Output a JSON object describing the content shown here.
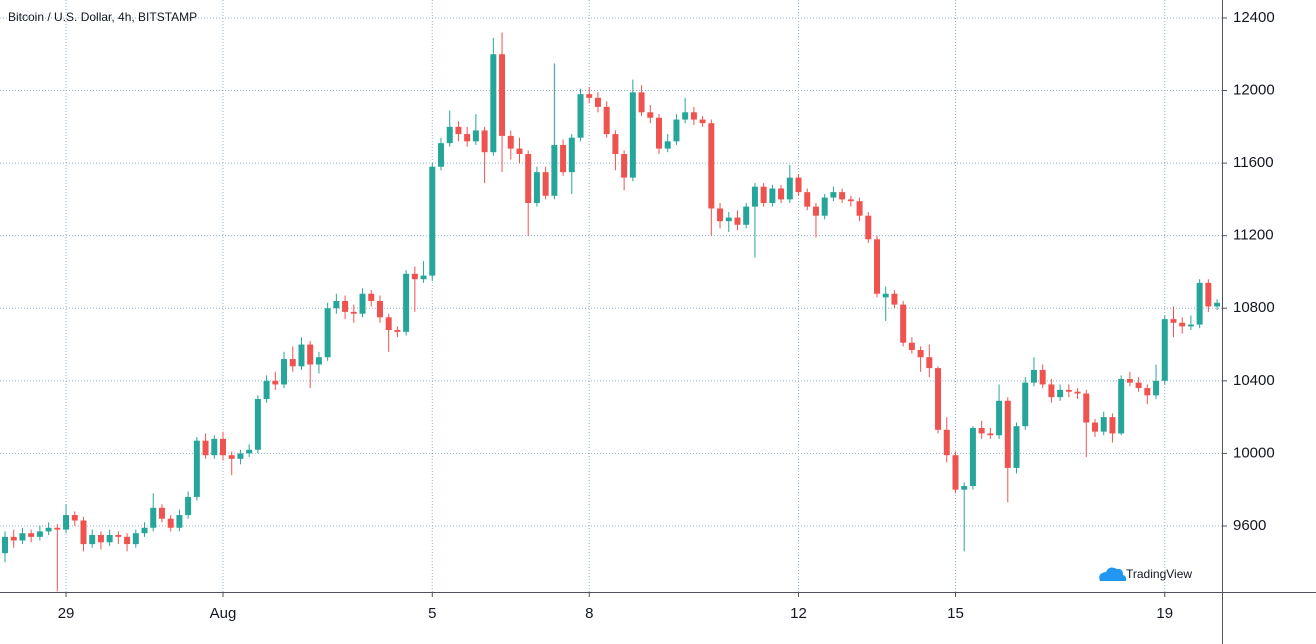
{
  "chart_data": {
    "type": "candlestick",
    "title": "Bitcoin / U.S. Dollar, 4h, BITSTAMP",
    "watermark": "TradingView",
    "categories": [
      null,
      null,
      null,
      null,
      null,
      null,
      null,
      "29",
      null,
      null,
      null,
      null,
      null,
      null,
      null,
      null,
      null,
      null,
      null,
      null,
      null,
      null,
      null,
      null,
      null,
      "Aug",
      null,
      null,
      null,
      null,
      null,
      null,
      null,
      null,
      null,
      null,
      null,
      null,
      null,
      null,
      null,
      null,
      null,
      null,
      null,
      null,
      null,
      null,
      null,
      "5",
      null,
      null,
      null,
      null,
      null,
      null,
      null,
      null,
      null,
      null,
      null,
      null,
      null,
      null,
      null,
      null,
      null,
      "8",
      null,
      null,
      null,
      null,
      null,
      null,
      null,
      null,
      null,
      null,
      null,
      null,
      null,
      null,
      null,
      null,
      null,
      null,
      null,
      null,
      null,
      null,
      null,
      "12",
      null,
      null,
      null,
      null,
      null,
      null,
      null,
      null,
      null,
      null,
      null,
      null,
      null,
      null,
      null,
      null,
      null,
      "15",
      null,
      null,
      null,
      null,
      null,
      null,
      null,
      null,
      null,
      null,
      null,
      null,
      null,
      null,
      null,
      null,
      null,
      null,
      null,
      null,
      null,
      null,
      null,
      "19",
      null,
      null,
      null,
      null,
      null,
      null
    ],
    "open": [
      9450,
      9540,
      9520,
      9560,
      9540,
      9570,
      9590,
      9580,
      9660,
      9630,
      9500,
      9550,
      9510,
      9550,
      9540,
      9500,
      9560,
      9590,
      9700,
      9640,
      9590,
      9660,
      9760,
      10070,
      9990,
      10080,
      9990,
      9970,
      10000,
      10020,
      10300,
      10400,
      10380,
      10520,
      10480,
      10600,
      10490,
      10530,
      10800,
      10840,
      10780,
      10770,
      10880,
      10840,
      10750,
      10680,
      10670,
      10990,
      10960,
      10980,
      11580,
      11710,
      11800,
      11760,
      11720,
      11780,
      11660,
      12200,
      11750,
      11680,
      11650,
      11380,
      11550,
      11420,
      11700,
      11550,
      11740,
      11980,
      11960,
      11910,
      11760,
      11650,
      11520,
      11990,
      11880,
      11850,
      11680,
      11720,
      11840,
      11880,
      11840,
      11820,
      11350,
      11280,
      11300,
      11260,
      11360,
      11470,
      11380,
      11460,
      11400,
      11520,
      11440,
      11360,
      11310,
      11410,
      11440,
      11400,
      11390,
      11310,
      11180,
      10860,
      10880,
      10820,
      10610,
      10570,
      10530,
      10470,
      10130,
      9990,
      9800,
      9820,
      10140,
      10110,
      10100,
      10290,
      9920,
      10150,
      10390,
      10460,
      10380,
      10310,
      10350,
      10340,
      10330,
      10170,
      10120,
      10200,
      10110,
      10410,
      10390,
      10360,
      10320,
      10400,
      10740,
      10720,
      10700,
      10710,
      10940,
      10810
    ],
    "high": [
      9570,
      9580,
      9590,
      9580,
      9600,
      9620,
      9610,
      9720,
      9680,
      9650,
      9580,
      9570,
      9580,
      9570,
      9560,
      9580,
      9620,
      9780,
      9720,
      9660,
      9690,
      9790,
      10090,
      10110,
      10100,
      10120,
      10010,
      10020,
      10050,
      10320,
      10430,
      10450,
      10560,
      10590,
      10640,
      10620,
      10560,
      10830,
      10880,
      10870,
      10820,
      10910,
      10900,
      10870,
      10770,
      10700,
      11010,
      11030,
      11060,
      11600,
      11740,
      11890,
      11830,
      11800,
      11870,
      11800,
      12290,
      12320,
      11780,
      11740,
      11670,
      11580,
      11580,
      12150,
      11730,
      11760,
      12010,
      12020,
      11990,
      11940,
      11780,
      11670,
      12060,
      12030,
      11920,
      11870,
      11760,
      11870,
      11960,
      11910,
      11860,
      11840,
      11380,
      11330,
      11340,
      11380,
      11490,
      11490,
      11480,
      11480,
      11590,
      11540,
      11460,
      11380,
      11430,
      11470,
      11460,
      11420,
      11410,
      11330,
      11200,
      10920,
      10900,
      10840,
      10640,
      10590,
      10600,
      10480,
      10200,
      10010,
      9840,
      10150,
      10180,
      10140,
      10380,
      10310,
      10170,
      10420,
      10530,
      10490,
      10410,
      10380,
      10380,
      10360,
      10350,
      10190,
      10230,
      10220,
      10430,
      10450,
      10420,
      10380,
      10490,
      10760,
      10810,
      10750,
      10760,
      10960,
      10960,
      10850
    ],
    "low": [
      9400,
      9480,
      9500,
      9510,
      9520,
      9550,
      9240,
      9560,
      9600,
      9460,
      9480,
      9470,
      9490,
      9500,
      9460,
      9480,
      9540,
      9570,
      9620,
      9570,
      9570,
      9640,
      9740,
      9970,
      9970,
      9960,
      9880,
      9940,
      9980,
      10000,
      10280,
      10350,
      10360,
      10450,
      10460,
      10360,
      10440,
      10510,
      10770,
      10740,
      10720,
      10750,
      10810,
      10720,
      10560,
      10640,
      10650,
      10780,
      10940,
      10950,
      11560,
      11690,
      11720,
      11690,
      11700,
      11490,
      11640,
      11550,
      11620,
      11600,
      11200,
      11360,
      11400,
      11400,
      11530,
      11430,
      11720,
      11930,
      11880,
      11740,
      11560,
      11450,
      11500,
      11860,
      11820,
      11650,
      11660,
      11700,
      11820,
      11810,
      11800,
      11200,
      11240,
      11220,
      11230,
      11240,
      11080,
      11360,
      11360,
      11380,
      11380,
      11420,
      11340,
      11190,
      11290,
      11390,
      11380,
      11360,
      11280,
      11160,
      10860,
      10730,
      10800,
      10590,
      10550,
      10450,
      10420,
      10110,
      9950,
      9780,
      9460,
      9800,
      10080,
      10080,
      10080,
      9730,
      9890,
      10130,
      10370,
      10360,
      10280,
      10290,
      10310,
      10300,
      9980,
      10090,
      10100,
      10060,
      10100,
      10370,
      10340,
      10270,
      10300,
      10380,
      10640,
      10660,
      10680,
      10690,
      10780,
      10790
    ],
    "close": [
      9540,
      9520,
      9560,
      9540,
      9570,
      9590,
      9580,
      9660,
      9630,
      9500,
      9550,
      9510,
      9550,
      9540,
      9500,
      9560,
      9590,
      9700,
      9640,
      9590,
      9660,
      9760,
      10070,
      9990,
      10080,
      9990,
      9970,
      10000,
      10020,
      10300,
      10400,
      10380,
      10520,
      10480,
      10600,
      10490,
      10530,
      10800,
      10840,
      10780,
      10770,
      10880,
      10840,
      10750,
      10680,
      10670,
      10990,
      10960,
      10980,
      11580,
      11710,
      11800,
      11760,
      11720,
      11780,
      11660,
      12200,
      11750,
      11680,
      11650,
      11380,
      11550,
      11420,
      11700,
      11550,
      11740,
      11980,
      11960,
      11910,
      11760,
      11650,
      11520,
      11990,
      11880,
      11850,
      11680,
      11720,
      11840,
      11880,
      11840,
      11820,
      11350,
      11280,
      11300,
      11260,
      11360,
      11470,
      11380,
      11460,
      11400,
      11520,
      11440,
      11360,
      11310,
      11410,
      11440,
      11400,
      11390,
      11310,
      11180,
      10880,
      10880,
      10820,
      10610,
      10570,
      10530,
      10470,
      10130,
      9990,
      9800,
      9820,
      10140,
      10110,
      10100,
      10290,
      9920,
      10150,
      10390,
      10460,
      10380,
      10310,
      10350,
      10340,
      10330,
      10170,
      10120,
      10200,
      10110,
      10410,
      10390,
      10360,
      10320,
      10400,
      10740,
      10720,
      10700,
      10710,
      10940,
      10810,
      10830
    ],
    "up_color": "#26a69a",
    "down_color": "#ef5350",
    "ylim": [
      9236,
      12499
    ],
    "yticks": [
      9600,
      10000,
      10400,
      10800,
      11200,
      11600,
      12000,
      12400
    ],
    "grid": true
  }
}
